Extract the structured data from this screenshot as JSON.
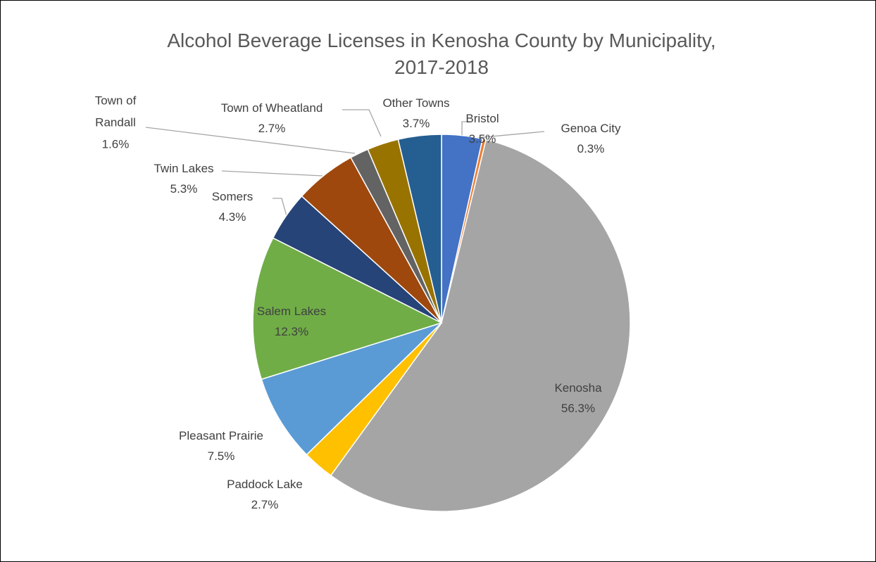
{
  "chart_data": {
    "type": "pie",
    "title": "Alcohol Beverage Licenses in Kenosha County by Municipality, 2017-2018",
    "categories": [
      "Bristol",
      "Genoa City",
      "Kenosha",
      "Paddock Lake",
      "Pleasant Prairie",
      "Salem Lakes",
      "Somers",
      "Twin Lakes",
      "Town of Randall",
      "Town of Wheatland",
      "Other Towns"
    ],
    "values": [
      3.5,
      0.3,
      56.3,
      2.7,
      7.5,
      12.3,
      4.3,
      5.3,
      1.6,
      2.7,
      3.7
    ],
    "value_labels": [
      "3.5%",
      "0.3%",
      "56.3%",
      "2.7%",
      "7.5%",
      "12.3%",
      "4.3%",
      "5.3%",
      "1.6%",
      "2.7%",
      "3.7%"
    ],
    "colors": [
      "#4472c4",
      "#ed7d31",
      "#a5a5a5",
      "#ffc000",
      "#5b9bd5",
      "#70ad47",
      "#264478",
      "#9e480e",
      "#636363",
      "#997300",
      "#255e91"
    ]
  }
}
